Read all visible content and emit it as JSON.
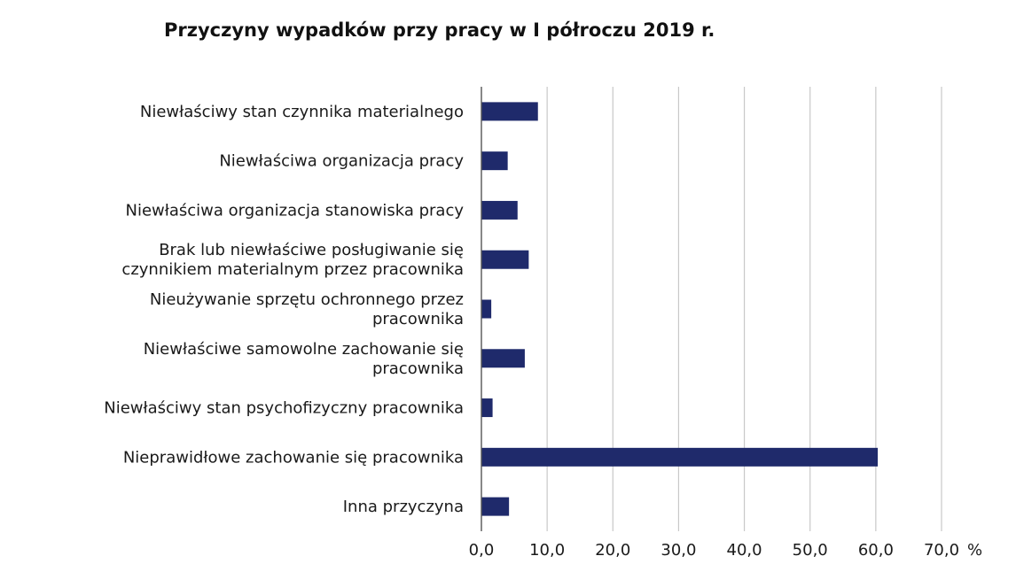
{
  "chart_data": {
    "type": "bar",
    "orientation": "horizontal",
    "title": "Przyczyny wypadków przy pracy w I półroczu 2019 r.",
    "categories": [
      [
        "Niewłaściwy stan czynnika materialnego"
      ],
      [
        "Niewłaściwa organizacja pracy"
      ],
      [
        "Niewłaściwa organizacja stanowiska pracy"
      ],
      [
        "Brak lub niewłaściwe posługiwanie się",
        "czynnikiem materialnym przez pracownika"
      ],
      [
        "Nieużywanie sprzętu ochronnego przez",
        "pracownika"
      ],
      [
        "Niewłaściwe samowolne zachowanie się",
        "pracownika"
      ],
      [
        "Niewłaściwy stan psychofizyczny pracownika"
      ],
      [
        "Nieprawidłowe zachowanie się pracownika"
      ],
      [
        "Inna przyczyna"
      ]
    ],
    "values": [
      8.6,
      4.0,
      5.5,
      7.2,
      1.5,
      6.6,
      1.7,
      60.3,
      4.2
    ],
    "xlim": [
      0,
      70
    ],
    "xticks": [
      "0,0",
      "10,0",
      "20,0",
      "30,0",
      "40,0",
      "50,0",
      "60,0",
      "70,0"
    ],
    "unit": "%",
    "grid": true,
    "bar_color": "#1f2a6b",
    "grid_color": "#c8c8c8",
    "axis_color": "#555555"
  }
}
